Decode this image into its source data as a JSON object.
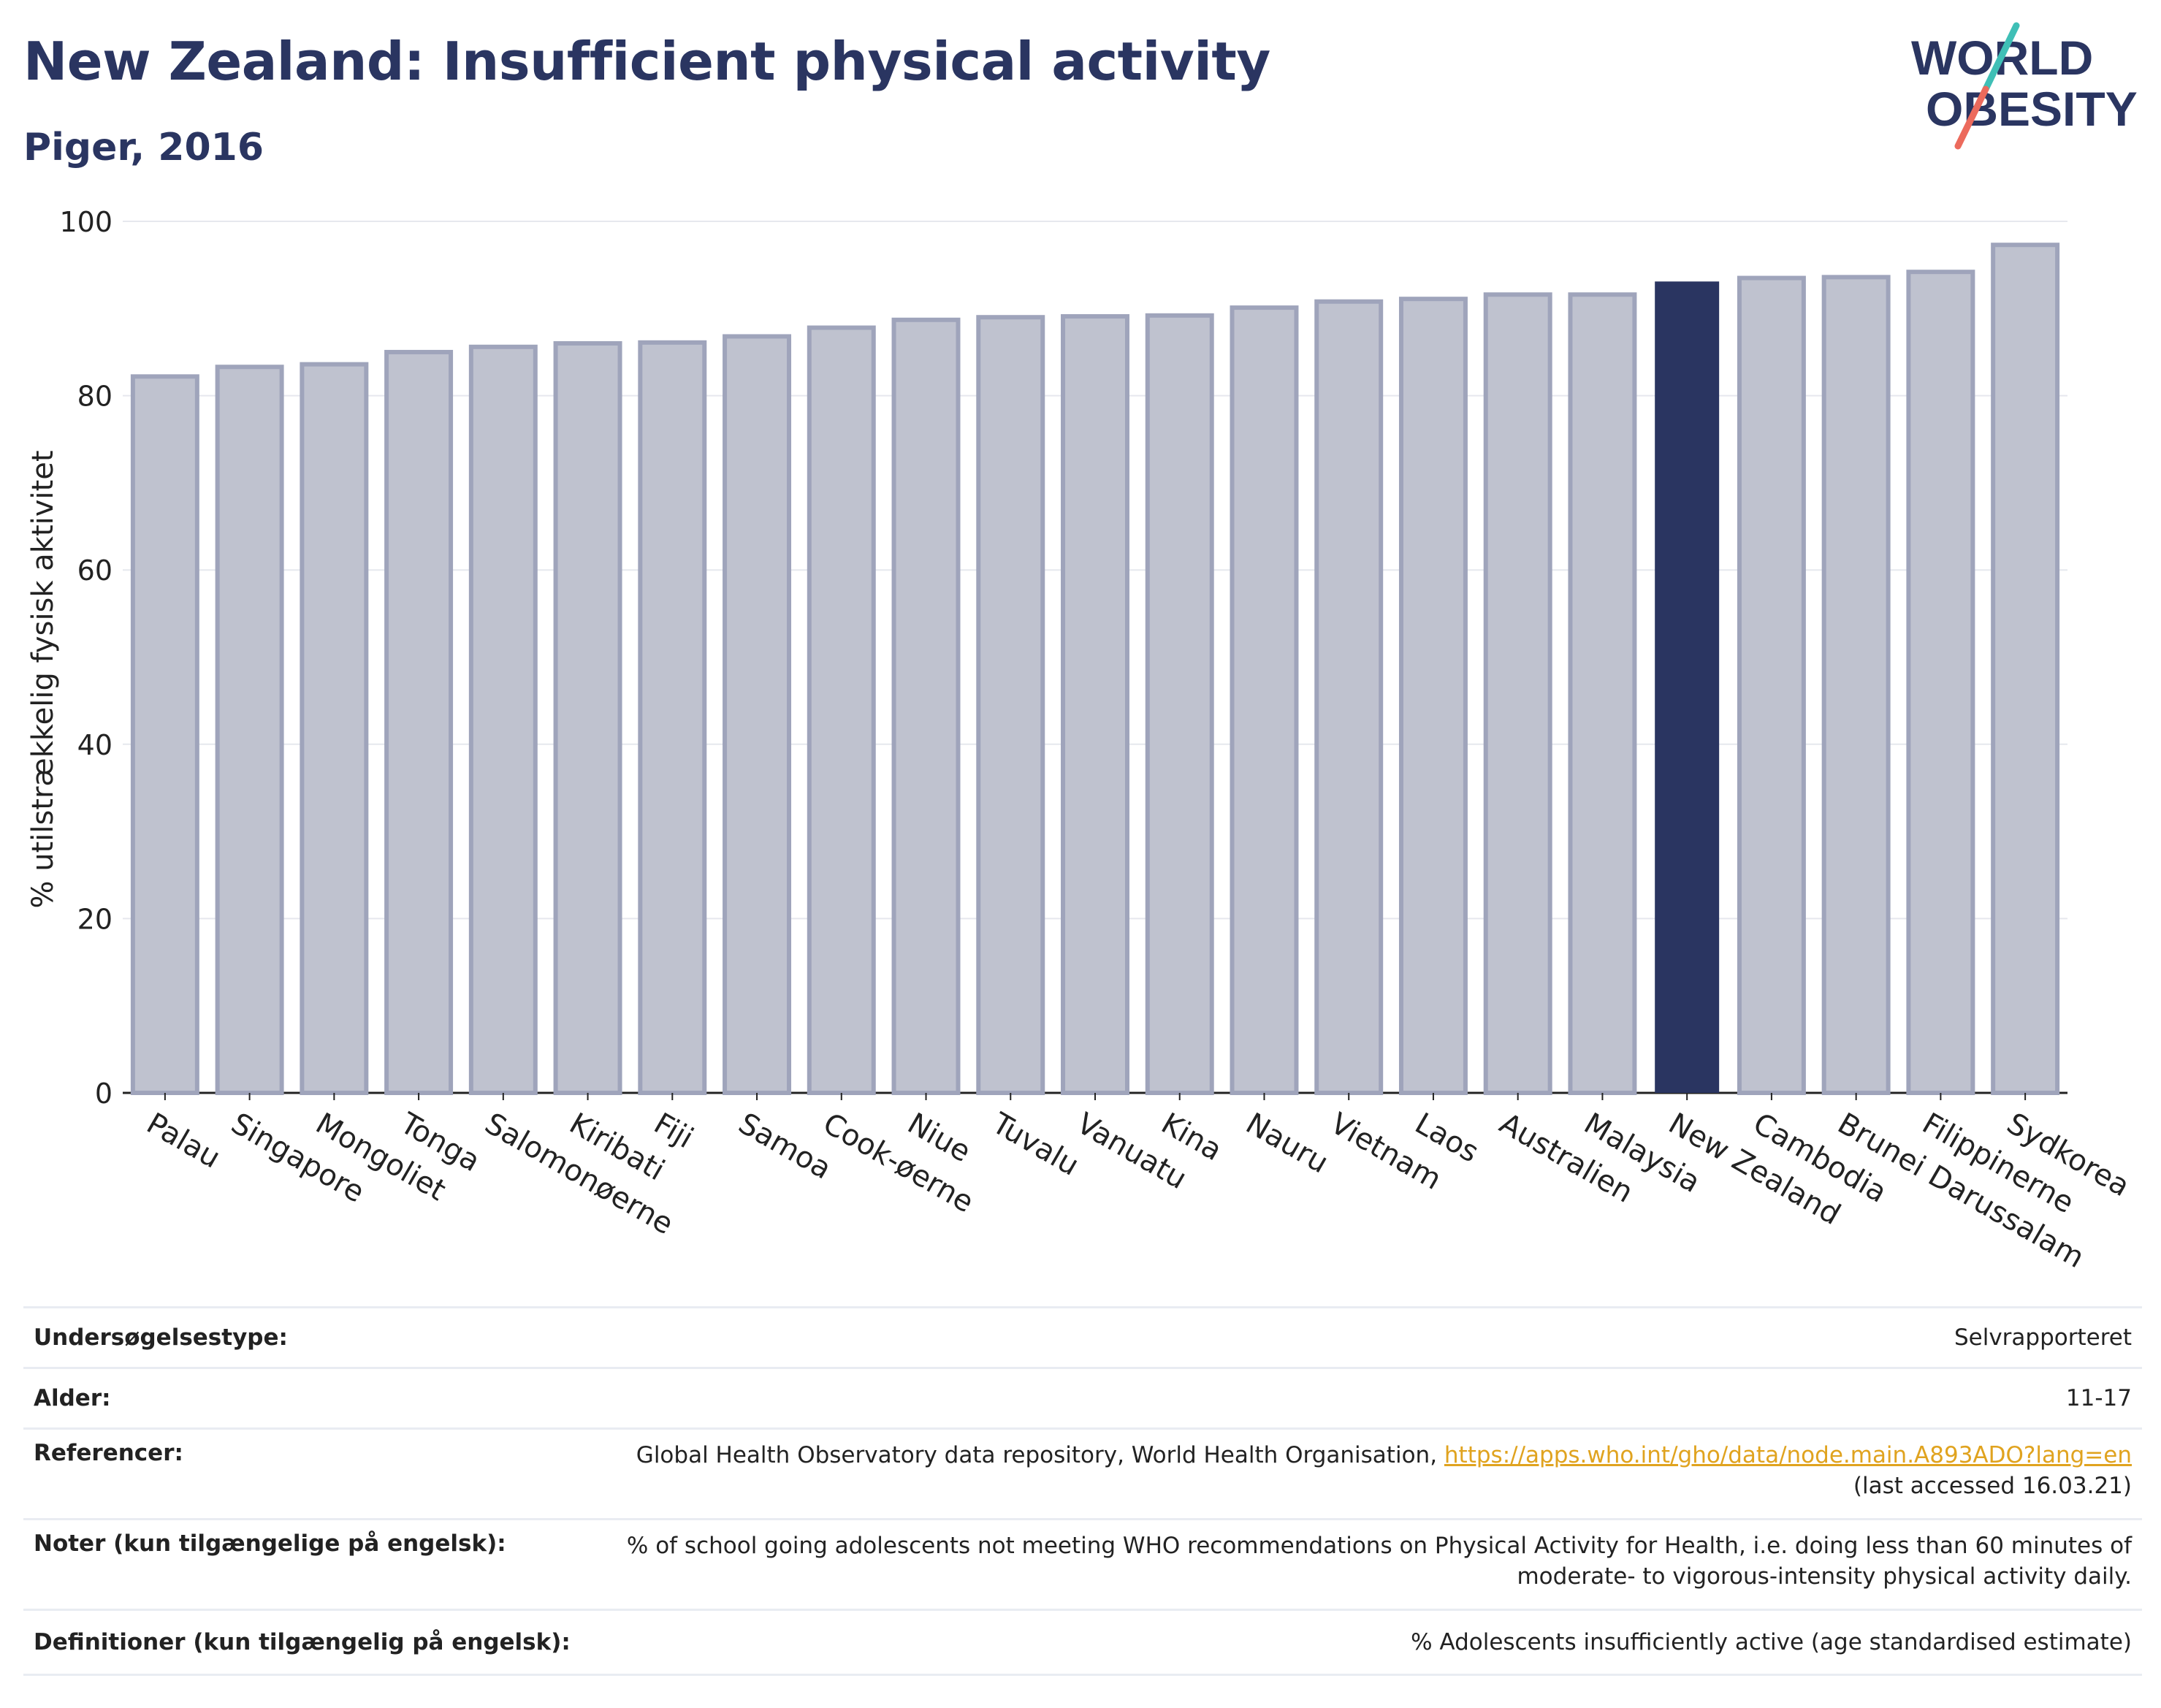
{
  "header": {
    "title": "New Zealand: Insufficient physical activity",
    "subtitle": "Piger, 2016"
  },
  "logo": {
    "line1": "WORLD",
    "line2": "OBESITY"
  },
  "chart_data": {
    "type": "bar",
    "ylabel": "% utilstrækkelig fysisk aktivitet",
    "xlabel": "",
    "ylim": [
      0,
      100
    ],
    "yticks": [
      0,
      20,
      40,
      60,
      80,
      100
    ],
    "grid": true,
    "categories": [
      "Palau",
      "Singapore",
      "Mongoliet",
      "Tonga",
      "Salomonøerne",
      "Kiribati",
      "Fiji",
      "Samoa",
      "Cook-øerne",
      "Niue",
      "Tuvalu",
      "Vanuatu",
      "Kina",
      "Nauru",
      "Vietnam",
      "Laos",
      "Australien",
      "Malaysia",
      "New Zealand",
      "Cambodia",
      "Brunei Darussalam",
      "Filippinerne",
      "Sydkorea"
    ],
    "values": [
      82.2,
      83.3,
      83.6,
      85.0,
      85.6,
      86.0,
      86.1,
      86.8,
      87.8,
      88.7,
      89.0,
      89.1,
      89.2,
      90.1,
      90.8,
      91.1,
      91.6,
      91.6,
      93.1,
      93.5,
      93.6,
      94.2,
      97.3
    ],
    "highlight": "New Zealand",
    "colors": {
      "bar": "#bfc2cf",
      "bar_edge": "#9fa4bb",
      "highlight": "#2a3561"
    }
  },
  "info": [
    {
      "label": "Undersøgelsestype:",
      "value": "Selvrapporteret"
    },
    {
      "label": "Alder:",
      "value": "11-17"
    },
    {
      "label": "Referencer:",
      "value_prefix": "Global Health Observatory data repository, World Health Organisation, ",
      "value_link": "https://apps.who.int/gho/data/node.main.A893ADO?lang=en",
      "value_suffix": "(last accessed 16.03.21)"
    },
    {
      "label": "Noter (kun tilgængelige på engelsk):",
      "value_line1": "% of school going adolescents not meeting WHO recommendations on Physical Activity for Health, i.e. doing less than 60 minutes of",
      "value_line2": "moderate- to vigorous-intensity physical activity daily."
    },
    {
      "label": "Definitioner (kun tilgængelig på engelsk):",
      "value": "% Adolescents insufficiently active (age standardised estimate)"
    }
  ]
}
